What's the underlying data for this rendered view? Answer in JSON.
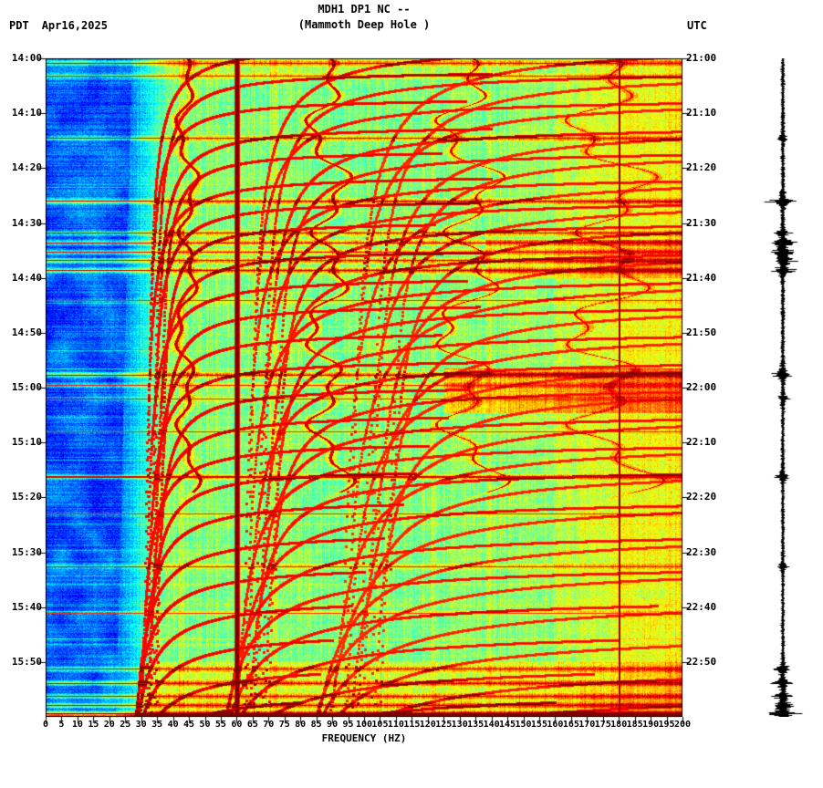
{
  "header": {
    "title_line1": "MDH1 DP1 NC --",
    "title_line2": "(Mammoth Deep Hole )",
    "tz_left": "PDT",
    "date": "Apr16,2025",
    "tz_right": "UTC"
  },
  "axes": {
    "xlabel": "FREQUENCY (HZ)",
    "freq_min_hz": 0,
    "freq_max_hz": 200,
    "freq_tick_step_hz": 5,
    "freq_tick_labels": [
      "0",
      "5",
      "10",
      "15",
      "20",
      "25",
      "30",
      "35",
      "40",
      "45",
      "50",
      "55",
      "60",
      "65",
      "70",
      "75",
      "80",
      "85",
      "90",
      "95",
      "100",
      "105",
      "110",
      "115",
      "120",
      "125",
      "130",
      "135",
      "140",
      "145",
      "150",
      "155",
      "160",
      "165",
      "170",
      "175",
      "180",
      "185",
      "190",
      "195",
      "200"
    ],
    "left_time_labels": [
      "14:00",
      "14:10",
      "14:20",
      "14:30",
      "14:40",
      "14:50",
      "15:00",
      "15:10",
      "15:20",
      "15:30",
      "15:40",
      "15:50"
    ],
    "right_time_labels": [
      "21:00",
      "21:10",
      "21:20",
      "21:30",
      "21:40",
      "21:50",
      "22:00",
      "22:10",
      "22:20",
      "22:30",
      "22:40",
      "22:50"
    ],
    "duration_min": 120
  },
  "chart_data": {
    "type": "heatmap",
    "subtype": "seismic-spectrogram",
    "station": "MDH1 DP1 NC",
    "station_name": "Mammoth Deep Hole",
    "date": "Apr16,2025",
    "timezone_left": "PDT",
    "timezone_right": "UTC",
    "time_start_pdt": "14:00",
    "time_end_pdt": "16:00",
    "time_start_utc": "21:00",
    "time_end_utc": "23:00",
    "xlabel": "FREQUENCY (HZ)",
    "freq_range_hz": [
      0,
      200
    ],
    "colormap": "jet",
    "power_line_hz": [
      60,
      180
    ],
    "tremor": {
      "fundamental_hz": 44.2,
      "wander_hz": 3.5,
      "harmonics": 4,
      "visible_until_min": 76
    },
    "gliding_arcs": [
      {
        "t0": -3,
        "f0": 31,
        "A": 95,
        "fmax": 140
      },
      {
        "t0": 2,
        "f0": 33,
        "A": 85,
        "fmax": 140
      },
      {
        "t0": 7,
        "f0": 31,
        "A": 80,
        "fmax": 132
      },
      {
        "t0": 12,
        "f0": 33,
        "A": 90,
        "fmax": 140
      },
      {
        "t0": 16.5,
        "f0": 35,
        "A": 70,
        "fmax": 124
      },
      {
        "t0": 21,
        "f0": 30,
        "A": 95,
        "fmax": 140
      },
      {
        "t0": 25.5,
        "f0": 32,
        "A": 85,
        "fmax": 136
      },
      {
        "t0": 29.5,
        "f0": 35,
        "A": 70,
        "fmax": 122
      },
      {
        "t0": 34.5,
        "f0": 33,
        "A": 90,
        "fmax": 140
      },
      {
        "t0": 39.5,
        "f0": 30,
        "A": 100,
        "fmax": 132
      },
      {
        "t0": 44.5,
        "f0": 34,
        "A": 80,
        "fmax": 136
      },
      {
        "t0": 49.5,
        "f0": 32,
        "A": 85,
        "fmax": 124
      },
      {
        "t0": 54.5,
        "f0": 30,
        "A": 95,
        "fmax": 140
      },
      {
        "t0": 59.5,
        "f0": 33,
        "A": 85,
        "fmax": 132
      },
      {
        "t0": 64.5,
        "f0": 31,
        "A": 90,
        "fmax": 126
      },
      {
        "t0": 69.5,
        "f0": 28,
        "A": 100,
        "fmax": 120
      },
      {
        "t0": 74.5,
        "f0": 30,
        "A": 90,
        "fmax": 116
      },
      {
        "t0": 80,
        "f0": 27,
        "A": 110,
        "fmax": 112
      },
      {
        "t0": 86,
        "f0": 25,
        "A": 120,
        "fmax": 106
      },
      {
        "t0": 92,
        "f0": 24,
        "A": 120,
        "fmax": 100
      },
      {
        "t0": 98,
        "f0": 23,
        "A": 130,
        "fmax": 96
      },
      {
        "t0": 104,
        "f0": 22,
        "A": 135,
        "fmax": 90
      },
      {
        "t0": 110,
        "f0": 21,
        "A": 140,
        "fmax": 86
      },
      {
        "t0": 115,
        "f0": 20,
        "A": 140,
        "fmax": 80
      }
    ],
    "broadband_events_min": [
      {
        "t": 0.8,
        "s": 0.3
      },
      {
        "t": 3.2,
        "s": 0.16
      },
      {
        "t": 14.5,
        "s": 0.3
      },
      {
        "t": 26.0,
        "s": 0.38
      },
      {
        "t": 31.8,
        "s": 0.28
      },
      {
        "t": 33.5,
        "s": 0.34
      },
      {
        "t": 35.2,
        "s": 0.26
      },
      {
        "t": 36.8,
        "s": 0.32
      },
      {
        "t": 38.6,
        "s": 0.4
      },
      {
        "t": 44.0,
        "s": 0.1
      },
      {
        "t": 57.6,
        "s": 0.4
      },
      {
        "t": 59.5,
        "s": 0.18
      },
      {
        "t": 62.0,
        "s": 0.14
      },
      {
        "t": 68.0,
        "s": 0.1
      },
      {
        "t": 76.2,
        "s": 0.3
      },
      {
        "t": 83.0,
        "s": 0.1
      },
      {
        "t": 92.5,
        "s": 0.2
      },
      {
        "t": 101.0,
        "s": 0.1
      },
      {
        "t": 111.2,
        "s": 0.28
      },
      {
        "t": 113.8,
        "s": 0.34
      },
      {
        "t": 116.2,
        "s": 0.3
      },
      {
        "t": 117.8,
        "s": 0.34
      },
      {
        "t": 119.3,
        "s": 0.42
      },
      {
        "t": 119.8,
        "s": 0.5
      }
    ],
    "warm_bands": [
      {
        "t0": 56.5,
        "t1": 64.5,
        "f0": 125,
        "f1": 200,
        "boost": 0.16
      },
      {
        "t0": 33,
        "t1": 40,
        "f0": 138,
        "f1": 200,
        "boost": 0.09
      },
      {
        "t0": 110,
        "t1": 120,
        "f0": 30,
        "f1": 200,
        "boost": 0.07
      },
      {
        "t0": 0,
        "t1": 3,
        "f0": 0,
        "f1": 150,
        "boost": 0.05
      }
    ],
    "waveform": {
      "base_amp": 2.3,
      "bursts": [
        {
          "t": 14.5,
          "a": 4
        },
        {
          "t": 26.0,
          "a": 13
        },
        {
          "t": 31.8,
          "a": 6
        },
        {
          "t": 33.5,
          "a": 9
        },
        {
          "t": 35.2,
          "a": 7
        },
        {
          "t": 36.8,
          "a": 11
        },
        {
          "t": 38.6,
          "a": 9
        },
        {
          "t": 57.6,
          "a": 10
        },
        {
          "t": 62.0,
          "a": 4
        },
        {
          "t": 76.2,
          "a": 5
        },
        {
          "t": 92.5,
          "a": 4
        },
        {
          "t": 111.2,
          "a": 7
        },
        {
          "t": 113.8,
          "a": 9
        },
        {
          "t": 116.2,
          "a": 8
        },
        {
          "t": 117.8,
          "a": 9
        },
        {
          "t": 119.3,
          "a": 12
        }
      ]
    },
    "notes": "Jet-colormap spectrogram: blue low-power band below ~25 Hz, cyan-green midband, yellow above 140 Hz; dark-red vertical mains line at 60 Hz and a thinner one at 180 Hz; wandering tremor harmonics near 45/90/135/180 Hz; families of hyperbolic gliding arcs; horizontal broadband red event lines; black helicorder trace at right."
  }
}
